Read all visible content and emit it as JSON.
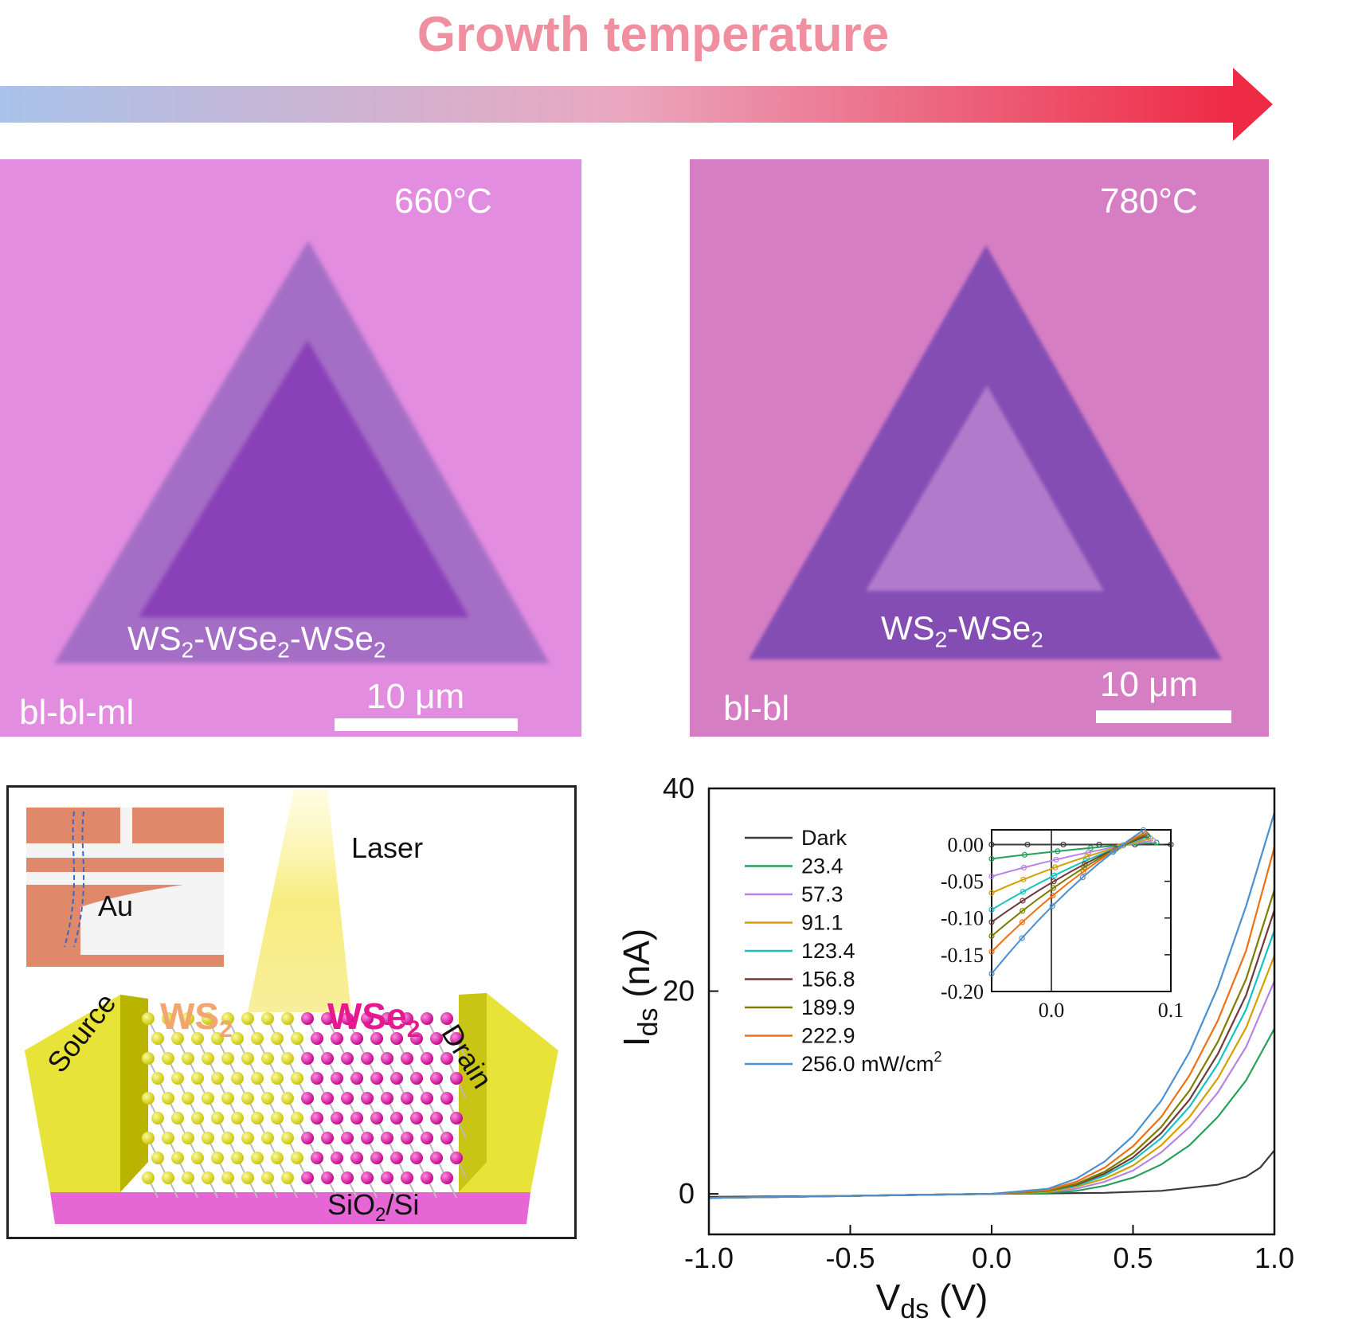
{
  "header": {
    "title": "Growth temperature"
  },
  "micro_left": {
    "temp": "660°C",
    "label_main": "WS",
    "label_sub1": "2",
    "label_mid1": "-WSe",
    "label_sub2": "2",
    "label_mid2": "-WSe",
    "label_sub3": "2",
    "corner": "bl-bl-ml",
    "scale": "10 μm"
  },
  "micro_right": {
    "temp": "780°C",
    "label_main": "WS",
    "label_sub1": "2",
    "label_mid1": "-WSe",
    "label_sub2": "2",
    "corner": "bl-bl",
    "scale": "10 μm"
  },
  "device": {
    "laser": "Laser",
    "au": "Au",
    "source": "Source",
    "drain": "Drain",
    "ws2": "WS",
    "ws2_sub": "2",
    "wse2": "WSe",
    "wse2_sub": "2",
    "substrate": "SiO",
    "substrate_sub": "2",
    "substrate_tail": "/Si"
  },
  "colors": {
    "ws2_label": "#f2a571",
    "wse2_label": "#e6198f",
    "gold": "#e7e338",
    "pink_sub": "#e86ad8"
  },
  "chart_data": {
    "type": "line",
    "xlabel": "V",
    "xlabel_sub": "ds",
    "xlabel_unit": " (V)",
    "ylabel": "I",
    "ylabel_sub": "ds",
    "ylabel_unit": " (nA)",
    "xlim": [
      -1.0,
      1.0
    ],
    "ylim": [
      -4,
      40
    ],
    "xticks": [
      "-1.0",
      "-0.5",
      "0.0",
      "0.5",
      "1.0"
    ],
    "yticks": [
      "0",
      "20",
      "40"
    ],
    "legend_position": "top-left",
    "series": [
      {
        "name": "Dark",
        "color": "#3a3a3a",
        "x": [
          -1.0,
          -0.5,
          0.0,
          0.2,
          0.4,
          0.6,
          0.8,
          0.9,
          0.95,
          1.0
        ],
        "y": [
          -0.3,
          -0.2,
          0.0,
          0.05,
          0.1,
          0.3,
          0.9,
          1.7,
          2.6,
          4.3
        ]
      },
      {
        "name": "23.4",
        "color": "#27a05a",
        "x": [
          -1.0,
          -0.5,
          0.0,
          0.2,
          0.3,
          0.4,
          0.5,
          0.6,
          0.7,
          0.8,
          0.9,
          1.0
        ],
        "y": [
          -0.4,
          -0.2,
          0.0,
          0.1,
          0.3,
          0.8,
          1.6,
          2.9,
          4.8,
          7.6,
          11.2,
          16.3
        ]
      },
      {
        "name": "57.3",
        "color": "#b784e6",
        "x": [
          -1.0,
          -0.5,
          0.0,
          0.2,
          0.3,
          0.4,
          0.5,
          0.6,
          0.7,
          0.8,
          0.9,
          1.0
        ],
        "y": [
          -0.4,
          -0.2,
          0.0,
          0.2,
          0.5,
          1.2,
          2.3,
          4.1,
          6.6,
          10.0,
          14.5,
          21.0
        ]
      },
      {
        "name": "91.1",
        "color": "#d4a000",
        "x": [
          -1.0,
          -0.5,
          0.0,
          0.2,
          0.3,
          0.4,
          0.5,
          0.6,
          0.7,
          0.8,
          0.9,
          1.0
        ],
        "y": [
          -0.4,
          -0.2,
          0.0,
          0.2,
          0.7,
          1.5,
          2.8,
          4.8,
          7.6,
          11.4,
          16.4,
          23.5
        ]
      },
      {
        "name": "123.4",
        "color": "#17c2c2",
        "x": [
          -1.0,
          -0.5,
          0.0,
          0.2,
          0.3,
          0.4,
          0.5,
          0.6,
          0.7,
          0.8,
          0.9,
          1.0
        ],
        "y": [
          -0.4,
          -0.2,
          0.0,
          0.3,
          0.8,
          1.8,
          3.3,
          5.5,
          8.6,
          12.8,
          18.2,
          26.0
        ]
      },
      {
        "name": "156.8",
        "color": "#6e3a3a",
        "x": [
          -1.0,
          -0.5,
          0.0,
          0.2,
          0.3,
          0.4,
          0.5,
          0.6,
          0.7,
          0.8,
          0.9,
          1.0
        ],
        "y": [
          -0.4,
          -0.2,
          0.0,
          0.3,
          0.9,
          2.0,
          3.6,
          6.0,
          9.3,
          13.8,
          19.6,
          28.0
        ]
      },
      {
        "name": "189.9",
        "color": "#7d7d00",
        "x": [
          -1.0,
          -0.5,
          0.0,
          0.2,
          0.3,
          0.4,
          0.5,
          0.6,
          0.7,
          0.8,
          0.9,
          1.0
        ],
        "y": [
          -0.4,
          -0.2,
          0.0,
          0.3,
          1.0,
          2.2,
          4.0,
          6.6,
          10.2,
          15.0,
          21.2,
          30.0
        ]
      },
      {
        "name": "222.9",
        "color": "#f07014",
        "x": [
          -1.0,
          -0.5,
          0.0,
          0.2,
          0.3,
          0.4,
          0.5,
          0.6,
          0.7,
          0.8,
          0.9,
          1.0
        ],
        "y": [
          -0.4,
          -0.2,
          0.0,
          0.4,
          1.2,
          2.6,
          4.7,
          7.6,
          11.7,
          17.1,
          24.0,
          34.2
        ]
      },
      {
        "name": "256.0 mW/cm",
        "name_sup": "2",
        "color": "#4a90d0",
        "x": [
          -1.0,
          -0.5,
          0.0,
          0.2,
          0.3,
          0.4,
          0.5,
          0.6,
          0.7,
          0.8,
          0.9,
          1.0
        ],
        "y": [
          -0.4,
          -0.2,
          0.0,
          0.5,
          1.5,
          3.2,
          5.7,
          9.2,
          14.0,
          20.4,
          28.4,
          37.6
        ]
      }
    ],
    "inset": {
      "xlim": [
        -0.05,
        0.1
      ],
      "ylim": [
        -0.2,
        0.02
      ],
      "xticks": [
        "0.0",
        "0.1"
      ],
      "yticks": [
        "0.00",
        "-0.05",
        "-0.10",
        "-0.15",
        "-0.20"
      ],
      "isc": [
        0.0,
        -0.01,
        -0.022,
        -0.033,
        -0.044,
        -0.052,
        -0.061,
        -0.071,
        -0.085
      ],
      "voc": [
        0.1,
        0.088,
        0.085,
        0.083,
        0.081,
        0.08,
        0.079,
        0.078,
        0.077
      ]
    }
  }
}
